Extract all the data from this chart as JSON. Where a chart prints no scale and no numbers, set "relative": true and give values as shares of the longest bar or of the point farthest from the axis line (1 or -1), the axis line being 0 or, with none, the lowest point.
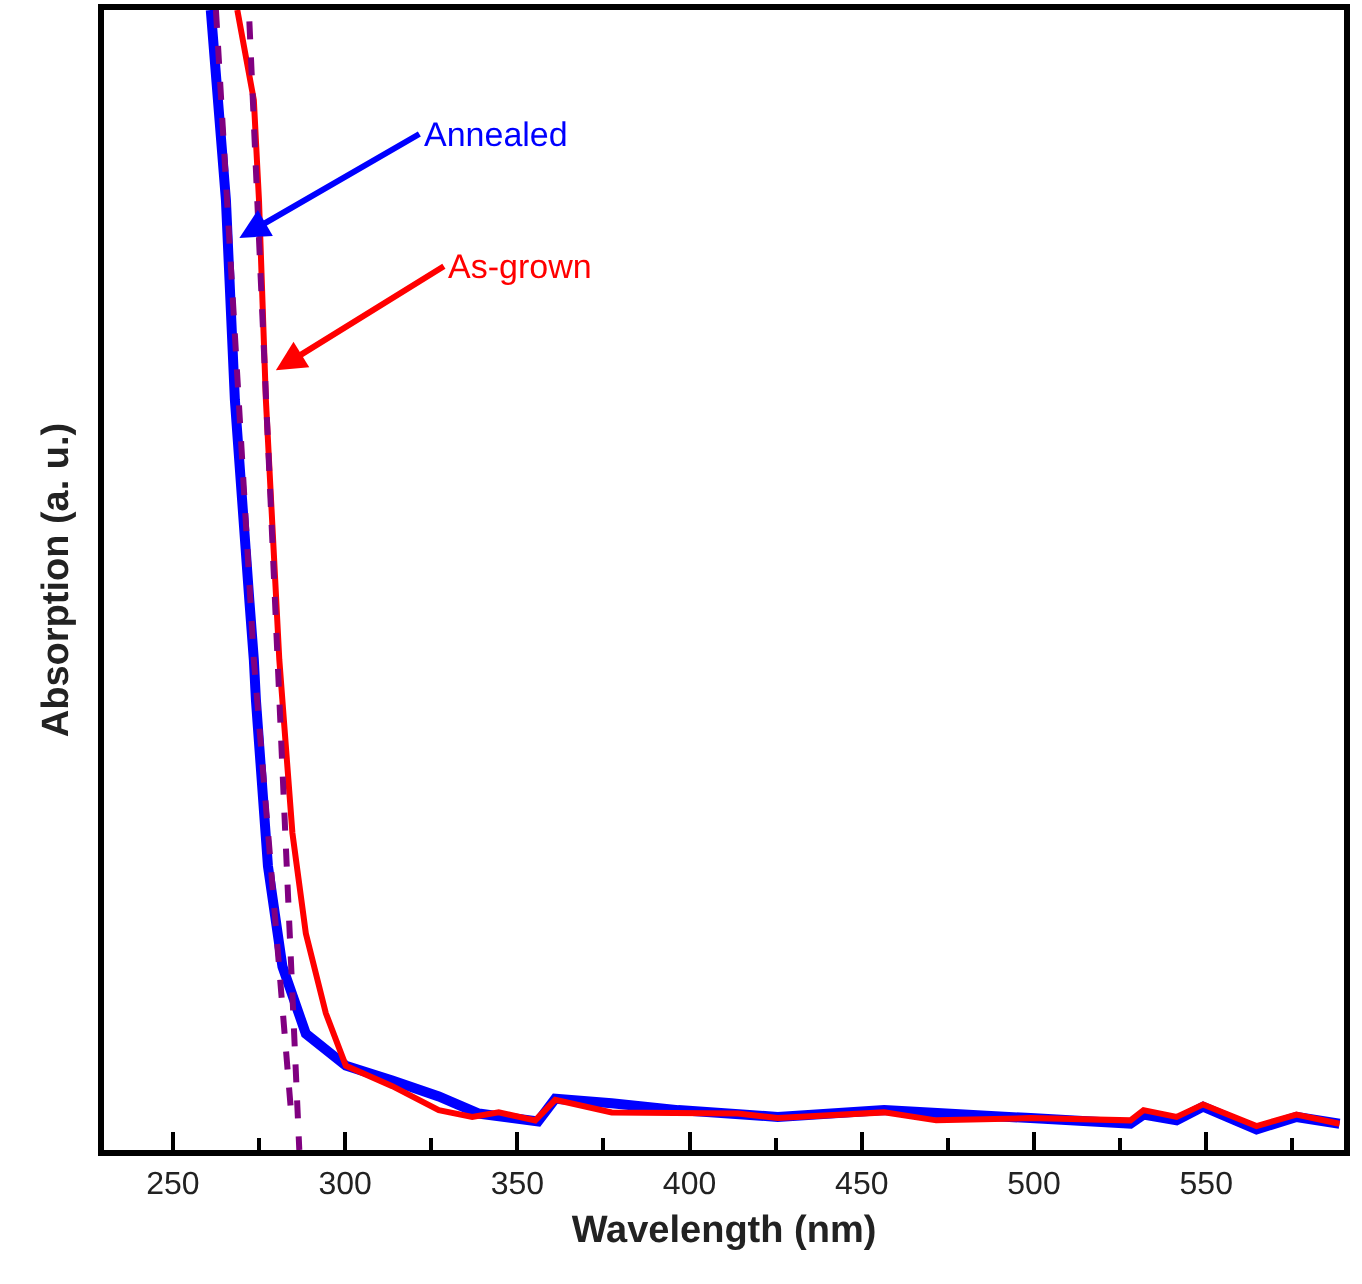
{
  "chart_data": {
    "type": "line",
    "xlabel": "Wavelength (nm)",
    "ylabel": "Absorption (a. u.)",
    "relative": true,
    "xlim": [
      230,
      590
    ],
    "xticks": [
      250,
      {
        "value": 275,
        "label": null
      },
      300,
      {
        "value": 325,
        "label": null
      },
      350,
      {
        "value": 375,
        "label": null
      },
      400,
      {
        "value": 425,
        "label": null
      },
      450,
      {
        "value": 475,
        "label": null
      },
      500,
      {
        "value": 525,
        "label": null
      },
      550,
      {
        "value": 575,
        "label": null
      }
    ],
    "grid": false,
    "series": [
      {
        "color": "#0000ff",
        "x": [
          261,
          265.4,
          268,
          272.2,
          273.5,
          274.1,
          277.6,
          281.8,
          288.6,
          300.2,
          313.7,
          327.2,
          338.8,
          356,
          361,
          377.4,
          396.7,
          425.6,
          456.5,
          499,
          528,
          531.8,
          541.4,
          549.1,
          564.6,
          576.2,
          588.7
        ],
        "values": [
          1.0,
          0.833,
          0.658,
          0.482,
          0.43,
          0.395,
          0.249,
          0.161,
          0.102,
          0.074,
          0.061,
          0.047,
          0.032,
          0.025,
          0.045,
          0.041,
          0.035,
          0.029,
          0.035,
          0.028,
          0.023,
          0.031,
          0.026,
          0.038,
          0.018,
          0.029,
          0.023
        ]
      },
      {
        "color": "#ff0000",
        "x": [
          268.7,
          273.5,
          275,
          277,
          280.9,
          284.7,
          288.6,
          294.4,
          300.2,
          313.7,
          327.2,
          336.9,
          344.6,
          355.2,
          361,
          377.4,
          414,
          425.6,
          456.5,
          471.6,
          499,
          528,
          531.8,
          541.4,
          549.1,
          564.6,
          576.2,
          588.7
        ],
        "values": [
          1.0,
          0.921,
          0.833,
          0.658,
          0.43,
          0.278,
          0.19,
          0.12,
          0.074,
          0.056,
          0.035,
          0.029,
          0.033,
          0.026,
          0.044,
          0.033,
          0.032,
          0.028,
          0.033,
          0.026,
          0.028,
          0.026,
          0.035,
          0.029,
          0.04,
          0.021,
          0.031,
          0.023
        ]
      },
      {
        "type": "line",
        "color": "#800080",
        "line_style": "dashed",
        "x": [
          262.5,
          273.5,
          284.4
        ],
        "values": [
          1.0,
          0.43,
          0.03
        ]
      },
      {
        "type": "line",
        "color": "#800080",
        "line_style": "dashed",
        "x": [
          272.2,
          280.4,
          286.7
        ],
        "values": [
          0.99,
          0.43,
          0.0
        ]
      }
    ],
    "annotations": [
      {
        "text": "Annealed",
        "x": 269.3,
        "y": 0.8
      },
      {
        "text": "As-grown",
        "x": 279.9,
        "y": 0.684
      }
    ]
  }
}
